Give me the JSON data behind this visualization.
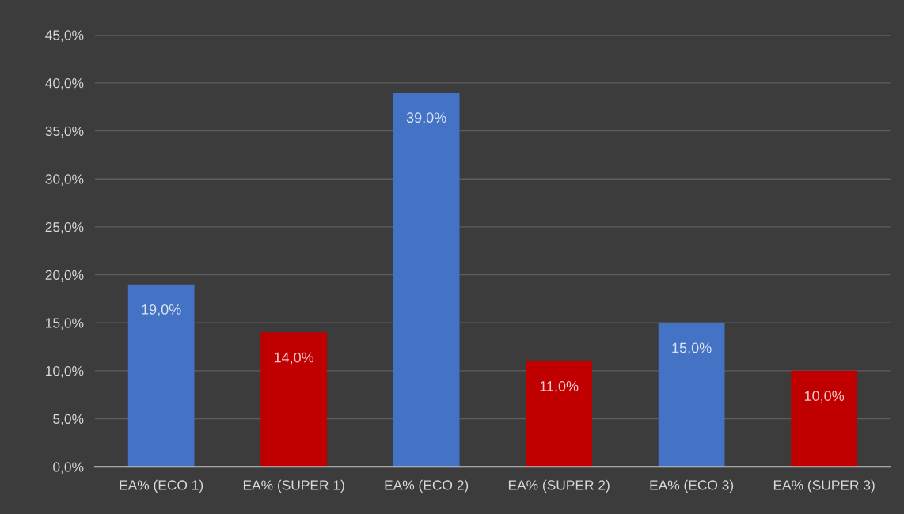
{
  "chart_data": {
    "type": "bar",
    "categories": [
      "EA% (ECO 1)",
      "EA% (SUPER 1)",
      "EA% (ECO 2)",
      "EA% (SUPER 2)",
      "EA% (ECO 3)",
      "EA% (SUPER 3)"
    ],
    "values": [
      19,
      14,
      39,
      11,
      15,
      10
    ],
    "colors": [
      "#4472c4",
      "#c00000",
      "#4472c4",
      "#c00000",
      "#4472c4",
      "#c00000"
    ],
    "value_labels": [
      "19,0%",
      "14,0%",
      "39,0%",
      "11,0%",
      "15,0%",
      "10,0%"
    ],
    "ylim": [
      0,
      45
    ],
    "yticks": [
      {
        "value": 0,
        "label": "0,0%"
      },
      {
        "value": 5,
        "label": "5,0%"
      },
      {
        "value": 10,
        "label": "10,0%"
      },
      {
        "value": 15,
        "label": "15,0%"
      },
      {
        "value": 20,
        "label": "20,0%"
      },
      {
        "value": 25,
        "label": "25,0%"
      },
      {
        "value": 30,
        "label": "30,0%"
      },
      {
        "value": 35,
        "label": "35,0%"
      },
      {
        "value": 40,
        "label": "40,0%"
      },
      {
        "value": 45,
        "label": "45,0%"
      }
    ],
    "grid": "y"
  }
}
